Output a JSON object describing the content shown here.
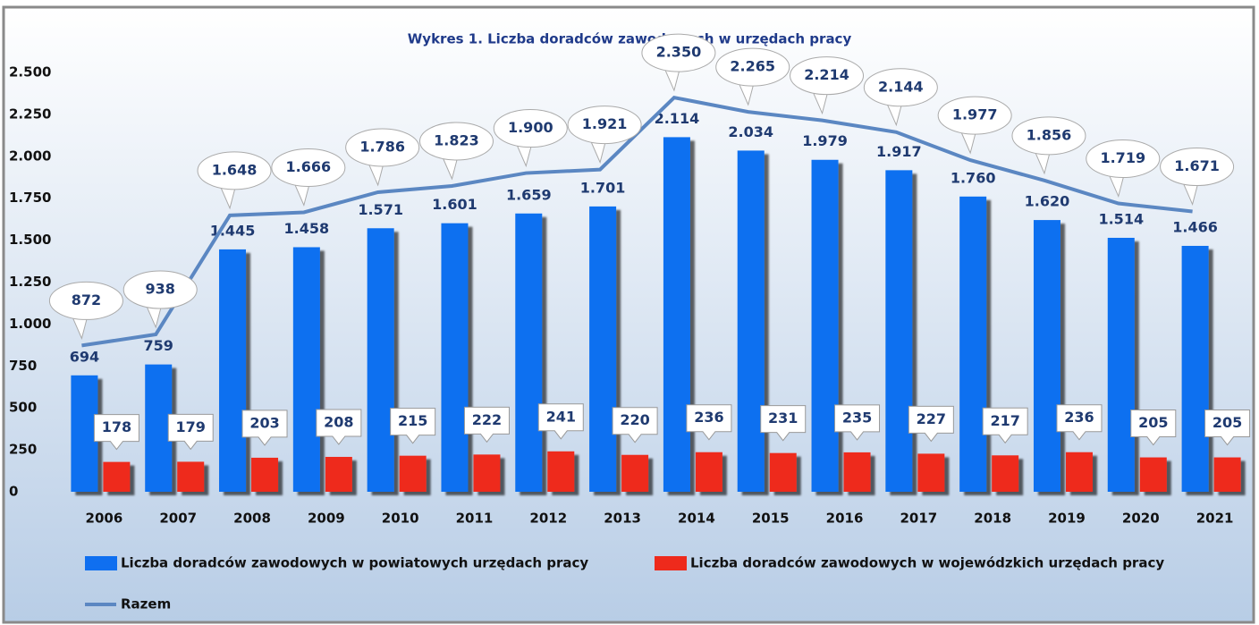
{
  "chart_data": {
    "type": "bar",
    "title": "Wykres 1. Liczba doradców zawodowych w urzędach pracy",
    "categories": [
      "2006",
      "2007",
      "2008",
      "2009",
      "2010",
      "2011",
      "2012",
      "2013",
      "2014",
      "2015",
      "2016",
      "2017",
      "2018",
      "2019",
      "2020",
      "2021"
    ],
    "series": [
      {
        "name": "Liczba doradców zawodowych w powiatowych urzędach pracy",
        "color": "#0f6ff0",
        "type": "bar",
        "values": [
          694,
          759,
          1445,
          1458,
          1571,
          1601,
          1659,
          1701,
          2114,
          2034,
          1979,
          1917,
          1760,
          1620,
          1514,
          1466
        ],
        "value_labels": [
          "694",
          "759",
          "1.445",
          "1.458",
          "1.571",
          "1.601",
          "1.659",
          "1.701",
          "2.114",
          "2.034",
          "1.979",
          "1.917",
          "1.760",
          "1.620",
          "1.514",
          "1.466"
        ]
      },
      {
        "name": "Liczba doradców zawodowych w wojewódzkich urzędach pracy",
        "color": "#ee2a1c",
        "type": "bar",
        "values": [
          178,
          179,
          203,
          208,
          215,
          222,
          241,
          220,
          236,
          231,
          235,
          227,
          217,
          236,
          205,
          205
        ],
        "value_labels": [
          "178",
          "179",
          "203",
          "208",
          "215",
          "222",
          "241",
          "220",
          "236",
          "231",
          "235",
          "227",
          "217",
          "236",
          "205",
          "205"
        ]
      },
      {
        "name": "Razem",
        "color": "#5b87c2",
        "type": "line",
        "values": [
          872,
          938,
          1648,
          1666,
          1786,
          1823,
          1900,
          1921,
          2350,
          2265,
          2214,
          2144,
          1977,
          1856,
          1719,
          1671
        ],
        "value_labels": [
          "872",
          "938",
          "1.648",
          "1.666",
          "1.786",
          "1.823",
          "1.900",
          "1.921",
          "2.350",
          "2.265",
          "2.214",
          "2.144",
          "1.977",
          "1.856",
          "1.719",
          "1.671"
        ]
      }
    ],
    "ylim": [
      0,
      2500
    ],
    "yticks": [
      0,
      250,
      500,
      750,
      {
        "value": 1000,
        "label": "1.000"
      },
      {
        "value": 1250,
        "label": "1.250"
      },
      {
        "value": 1500,
        "label": "1.500"
      },
      {
        "value": 1750,
        "label": "1.750"
      },
      {
        "value": 2000,
        "label": "2.000"
      },
      {
        "value": 2250,
        "label": "2.250"
      },
      {
        "value": 2500,
        "label": "2.500"
      }
    ],
    "grid": false,
    "legend": "bottom"
  }
}
